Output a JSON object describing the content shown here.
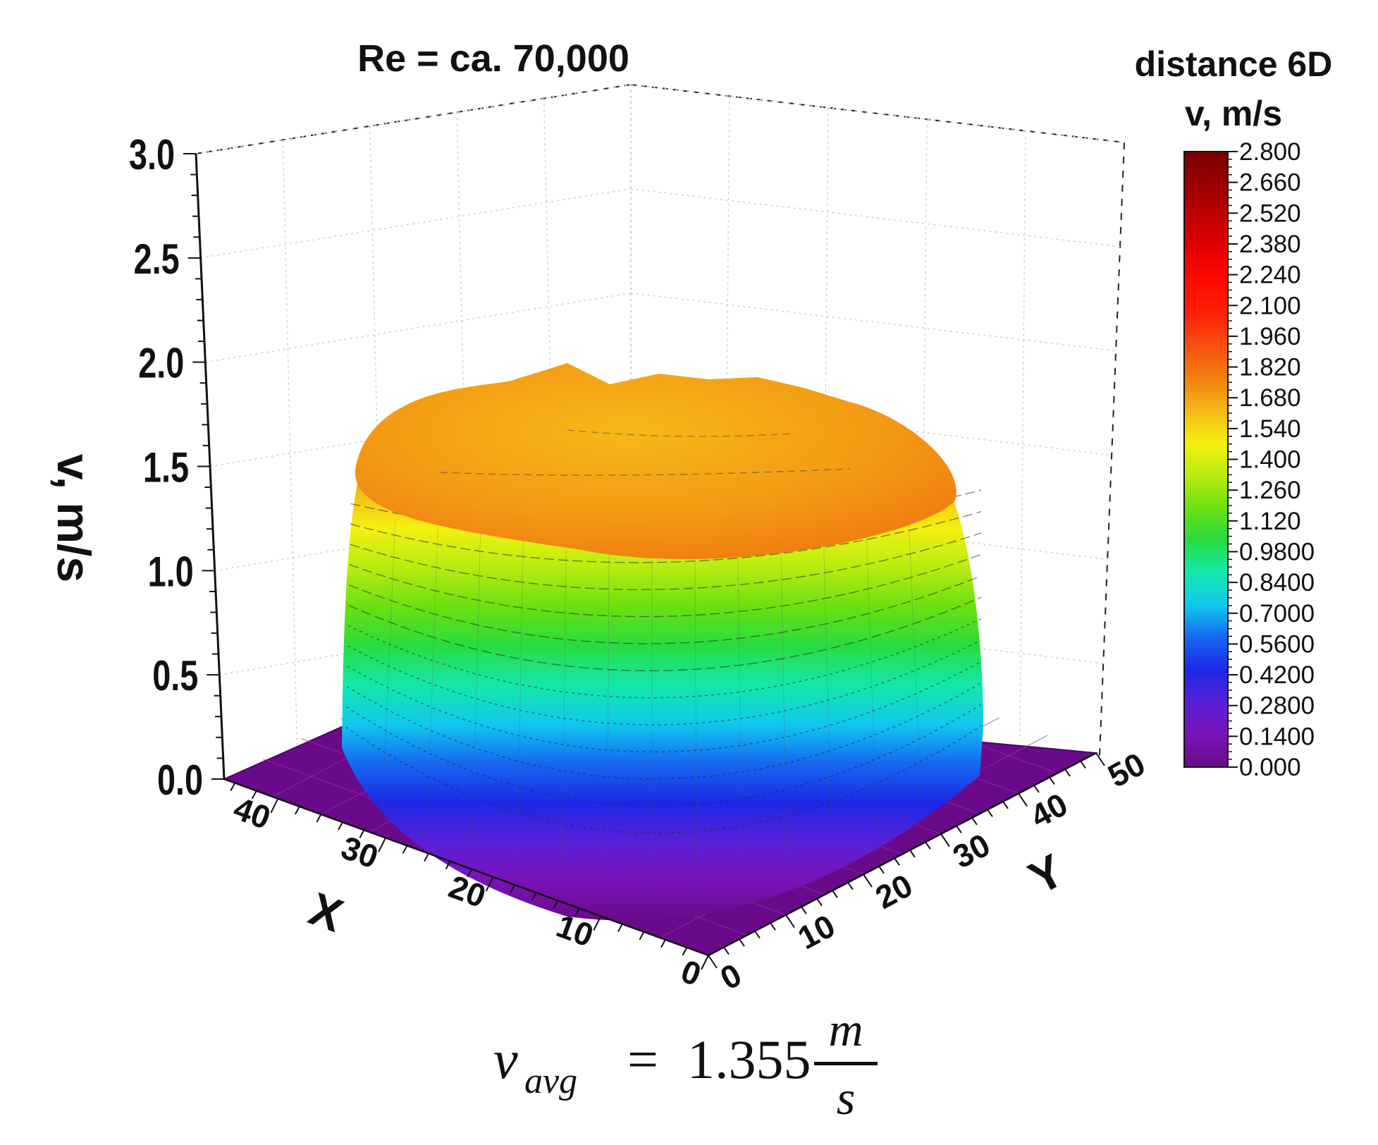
{
  "chart_data": {
    "type": "surface3d",
    "title": "Re = ca. 70,000",
    "legend_header": "distance 6D",
    "legend_title": "v, m/s",
    "zlabel": "v, m/s",
    "xlabel": "X",
    "ylabel": "Y",
    "zlim": [
      0,
      3.0
    ],
    "xlim": [
      0,
      45
    ],
    "ylim": [
      0,
      50
    ],
    "z_ticks": [
      "0.0",
      "0.5",
      "1.0",
      "1.5",
      "2.0",
      "2.5",
      "3.0"
    ],
    "x_ticks": [
      "0",
      "10",
      "20",
      "30",
      "40"
    ],
    "y_ticks": [
      "0",
      "10",
      "20",
      "30",
      "40",
      "50"
    ],
    "colorbar_levels": [
      "0.000",
      "0.1400",
      "0.2800",
      "0.4200",
      "0.5600",
      "0.7000",
      "0.8400",
      "0.9800",
      "1.120",
      "1.260",
      "1.400",
      "1.540",
      "1.680",
      "1.820",
      "1.960",
      "2.100",
      "2.240",
      "2.380",
      "2.520",
      "2.660",
      "2.800"
    ],
    "colorbar_colors": [
      "#6a0a8a",
      "#7a12b8",
      "#5a20d8",
      "#1c28e6",
      "#1668f0",
      "#10c8ee",
      "#14e8aa",
      "#28dc40",
      "#6ae010",
      "#b8ec10",
      "#f4f010",
      "#f6b818",
      "#f08010",
      "#f85010",
      "#ff2008",
      "#ff0a00",
      "#e40000",
      "#c00000",
      "#980000",
      "#780000"
    ],
    "surface_profile": [
      {
        "level": 0.0,
        "color": "#6a0a8a"
      },
      {
        "level": 0.14,
        "color": "#7a12b8"
      },
      {
        "level": 0.28,
        "color": "#5a20d8"
      },
      {
        "level": 0.42,
        "color": "#1c28e6"
      },
      {
        "level": 0.56,
        "color": "#1668f0"
      },
      {
        "level": 0.7,
        "color": "#10c8ee"
      },
      {
        "level": 0.84,
        "color": "#14e8aa"
      },
      {
        "level": 0.98,
        "color": "#28dc40"
      },
      {
        "level": 1.12,
        "color": "#6ae010"
      },
      {
        "level": 1.26,
        "color": "#b8ec10"
      },
      {
        "level": 1.4,
        "color": "#f4f010"
      },
      {
        "level": 1.54,
        "color": "#f6b818"
      },
      {
        "level": 1.68,
        "color": "#f08010"
      }
    ],
    "peak_value": 1.75,
    "annotation": {
      "avg_symbol": "v",
      "avg_subscript": "avg",
      "equals": "=",
      "avg_value": "1.355",
      "unit_numerator": "m",
      "unit_denominator": "s"
    }
  }
}
